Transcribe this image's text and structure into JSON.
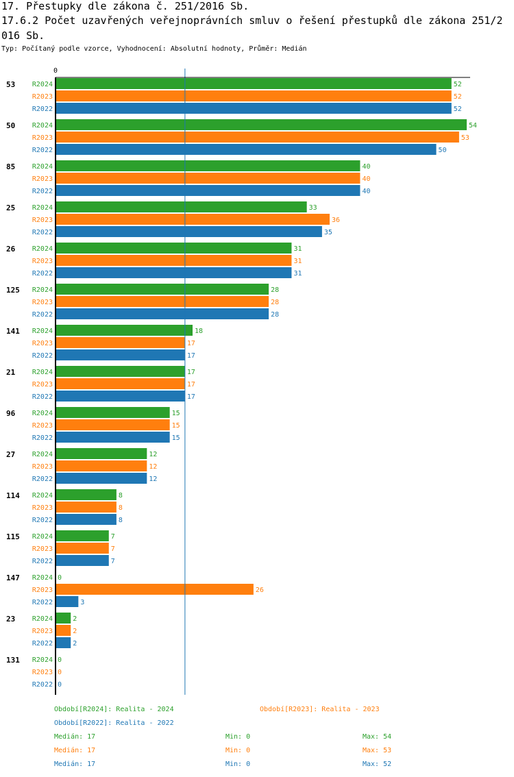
{
  "header": {
    "title_line1": "17. Přestupky dle zákona č. 251/2016 Sb.",
    "title_line2": "17.6.2 Počet uzavřených veřejnoprávních smluv o řešení přestupků dle zákona 251/2",
    "title_line3": "016 Sb.",
    "subtitle": "Typ: Počítaný podle vzorce, Vyhodnocení: Absolutní hodnoty, Průměr: Medián"
  },
  "chart_data": {
    "type": "bar",
    "orientation": "horizontal",
    "x_tick_label": "0",
    "xlim": [
      0,
      54
    ],
    "median_line": 17,
    "categories": [
      "53",
      "50",
      "85",
      "25",
      "26",
      "125",
      "141",
      "21",
      "96",
      "27",
      "114",
      "115",
      "147",
      "23",
      "131"
    ],
    "series": [
      {
        "name": "R2024",
        "color": "#2ca02c",
        "values": [
          52,
          54,
          40,
          33,
          31,
          28,
          18,
          17,
          15,
          12,
          8,
          7,
          0,
          2,
          0
        ]
      },
      {
        "name": "R2023",
        "color": "#ff7f0e",
        "values": [
          52,
          53,
          40,
          36,
          31,
          28,
          17,
          17,
          15,
          12,
          8,
          7,
          26,
          2,
          0
        ]
      },
      {
        "name": "R2022",
        "color": "#1f77b4",
        "values": [
          52,
          50,
          40,
          35,
          31,
          28,
          17,
          17,
          15,
          12,
          8,
          7,
          3,
          2,
          0
        ]
      }
    ]
  },
  "legend": [
    {
      "label": "Období[R2024]: Realita - 2024",
      "color": "#2ca02c"
    },
    {
      "label": "Období[R2023]: Realita - 2023",
      "color": "#ff7f0e"
    },
    {
      "label": "Období[R2022]: Realita - 2022",
      "color": "#1f77b4"
    }
  ],
  "stats": [
    {
      "median": "Medián: 17",
      "min": "Min: 0",
      "max": "Max: 54",
      "color": "#2ca02c"
    },
    {
      "median": "Medián: 17",
      "min": "Min: 0",
      "max": "Max: 53",
      "color": "#ff7f0e"
    },
    {
      "median": "Medián: 17",
      "min": "Min: 0",
      "max": "Max: 52",
      "color": "#1f77b4"
    }
  ]
}
